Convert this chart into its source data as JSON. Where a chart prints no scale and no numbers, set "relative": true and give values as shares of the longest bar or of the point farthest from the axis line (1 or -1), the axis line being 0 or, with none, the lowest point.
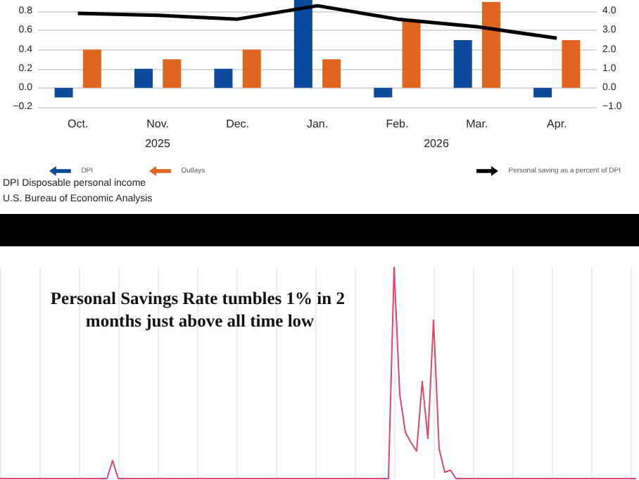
{
  "chart_data": [
    {
      "type": "bar",
      "categories": [
        "Oct.",
        "Nov.",
        "Dec.",
        "Jan.",
        "Feb.",
        "Mar.",
        "Apr."
      ],
      "series": [
        {
          "name": "DPI",
          "color": "#0b4a9c",
          "values": [
            -0.1,
            0.2,
            0.2,
            0.92,
            -0.1,
            0.5,
            -0.1
          ]
        },
        {
          "name": "Outlays",
          "color": "#e0651f",
          "values": [
            0.4,
            0.3,
            0.4,
            0.3,
            0.7,
            0.9,
            0.5
          ]
        },
        {
          "name": "Personal saving as a percent of DPI",
          "type": "line",
          "axis": "y2",
          "color": "#000000",
          "values": [
            3.9,
            3.8,
            3.6,
            4.3,
            3.6,
            3.2,
            2.6
          ]
        }
      ],
      "ylim": [
        -0.2,
        0.92
      ],
      "yticks": [
        {
          "value": -0.2,
          "label": "−0.2"
        },
        {
          "value": 0,
          "label": "0.0"
        },
        0.2,
        0.4,
        0.6,
        0.8
      ],
      "y2lim": [
        -1,
        4.6
      ],
      "y2ticks": [
        {
          "value": -1,
          "label": "−1.0"
        },
        {
          "value": 0,
          "label": "0.0"
        },
        {
          "value": 1,
          "label": "1.0"
        },
        {
          "value": 2,
          "label": "2.0"
        },
        {
          "value": 3,
          "label": "3.0"
        },
        {
          "value": 4,
          "label": "4.0"
        }
      ],
      "grid": "y",
      "legend": "bottom",
      "marker": "none",
      "annotations": [
        "2025",
        "2026",
        "DPI Disposable personal income",
        "U.S. Bureau of Economic Analysis"
      ]
    },
    {
      "type": "line",
      "relative": true,
      "grid": true,
      "marker": "none",
      "color": "#d9486a",
      "title": "Personal Savings Rate tumbles 1% in 2 months just above all time low",
      "categories": [
        null,
        null,
        null,
        null,
        null,
        null,
        null,
        null,
        null,
        null,
        null,
        null,
        null,
        null,
        null,
        null,
        null,
        null,
        null,
        null,
        null,
        null,
        null,
        null,
        null,
        null,
        null,
        null,
        null,
        null,
        null,
        null,
        null,
        null,
        null,
        null,
        null,
        null,
        null,
        null,
        null,
        null,
        null,
        null,
        null,
        null,
        null,
        null,
        null,
        null,
        null,
        null,
        null,
        null,
        null,
        null,
        null,
        null,
        null,
        null,
        null,
        null,
        null,
        null,
        null,
        null,
        null,
        null,
        null,
        null,
        null,
        null,
        null,
        null,
        null,
        null,
        null,
        null,
        null,
        null,
        null,
        null,
        null,
        null,
        null,
        null,
        null,
        null,
        null,
        null,
        null,
        null,
        null,
        null,
        null,
        null,
        null,
        null,
        null,
        null,
        null,
        null,
        null,
        null,
        null,
        null,
        null,
        null,
        null,
        null,
        null,
        null,
        null,
        null
      ],
      "values": [
        0,
        0,
        0,
        0,
        0,
        0,
        0,
        0,
        0,
        0,
        0,
        0,
        0,
        0,
        0,
        0,
        0,
        0,
        0,
        0,
        0.086,
        0,
        0,
        0,
        0,
        0,
        0,
        0,
        0,
        0,
        0,
        0,
        0,
        0,
        0,
        0,
        0,
        0,
        0,
        0,
        0,
        0,
        0,
        0,
        0,
        0,
        0,
        0,
        0,
        0,
        0,
        0,
        0,
        0,
        0,
        0,
        0,
        0,
        0,
        0,
        0,
        0,
        0,
        0,
        0,
        0,
        0,
        0,
        0,
        0,
        1,
        0.4,
        0.22,
        0.17,
        0.13,
        0.46,
        0.19,
        0.75,
        0.14,
        0.03,
        0.04,
        0,
        0,
        0,
        0,
        0,
        0,
        0,
        0,
        0,
        0,
        0,
        0,
        0,
        0,
        0,
        0,
        0,
        0,
        0,
        0,
        0,
        0,
        0,
        0,
        0,
        0,
        0,
        0,
        0,
        0,
        0,
        0,
        0
      ]
    }
  ]
}
